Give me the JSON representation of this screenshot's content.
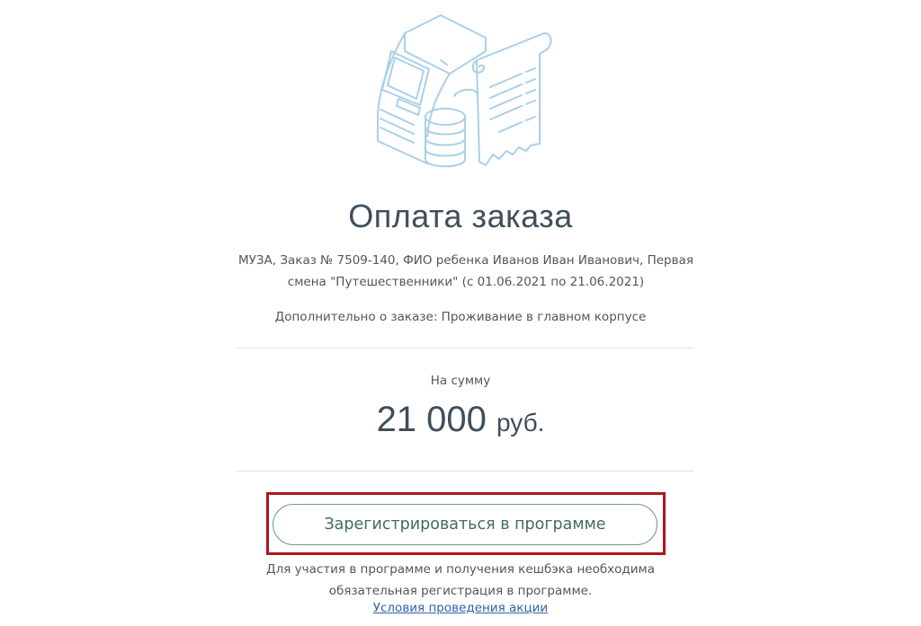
{
  "header": {
    "illustration_icon": "atm-coins-receipt-icon",
    "title": "Оплата заказа"
  },
  "order": {
    "description_line1": "МУЗА, Заказ № 7509-140, ФИО ребенка Иванов Иван Иванович, Первая",
    "description_line2": "смена \"Путешественники\" (с 01.06.2021 по 21.06.2021)",
    "extra": "Дополнительно о заказе: Проживание в главном корпусе"
  },
  "payment": {
    "sum_label": "На сумму",
    "amount": "21 000",
    "currency": "руб."
  },
  "program": {
    "register_button": "Зарегистрироваться в программе",
    "note_line1": "Для участия в программе и получения кешбэка необходима",
    "note_line2": "обязательная регистрация в программе.",
    "terms_link": "Условия проведения акции"
  },
  "colors": {
    "highlight_border": "#b3141d",
    "button_border": "#6f9c8c",
    "link": "#2f63a8",
    "illustration": "#a9cfe9"
  }
}
